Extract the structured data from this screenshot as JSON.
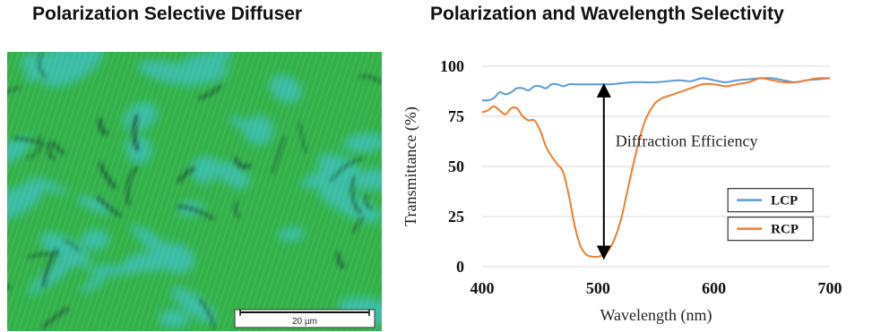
{
  "left_panel": {
    "title": "Polarization Selective Diffuser",
    "scale_bar_label": "20 µm",
    "colors": {
      "base": "#33b04a",
      "cyan": "#3cc0c8",
      "dark": "#1e5a3a",
      "stripe": "#5fd06a"
    }
  },
  "right_panel": {
    "title": "Polarization and Wavelength Selectivity"
  },
  "chart_data": {
    "type": "line",
    "xlabel": "Wavelength (nm)",
    "ylabel": "Transmittance (%)",
    "xlim": [
      400,
      700
    ],
    "ylim": [
      0,
      100
    ],
    "xticks": [
      400,
      500,
      600,
      700
    ],
    "yticks": [
      0,
      25,
      50,
      75,
      100
    ],
    "grid": "horizontal",
    "legend_placement": "bottom-right",
    "annotation": "Diffraction Efficiency",
    "series": [
      {
        "name": "LCP",
        "color": "#5b9bd5",
        "x": [
          400,
          405,
          410,
          415,
          420,
          425,
          430,
          435,
          440,
          445,
          450,
          455,
          460,
          465,
          470,
          475,
          480,
          490,
          500,
          510,
          520,
          530,
          540,
          550,
          560,
          570,
          580,
          590,
          600,
          610,
          620,
          630,
          640,
          650,
          660,
          670,
          680,
          690,
          700
        ],
        "y": [
          83,
          83,
          84,
          87,
          86,
          87,
          89,
          89,
          88,
          90,
          90,
          89,
          91,
          91,
          90,
          91,
          91,
          91,
          91,
          91,
          91.5,
          92,
          92,
          92,
          92.5,
          93,
          92.5,
          94,
          93,
          92,
          93,
          93.5,
          94,
          94,
          93,
          92,
          93,
          93.5,
          94
        ]
      },
      {
        "name": "RCP",
        "color": "#ed7d31",
        "x": [
          400,
          405,
          410,
          415,
          420,
          425,
          430,
          435,
          440,
          445,
          450,
          455,
          460,
          465,
          470,
          475,
          480,
          485,
          490,
          495,
          500,
          505,
          510,
          515,
          520,
          525,
          530,
          535,
          540,
          545,
          550,
          555,
          560,
          570,
          580,
          590,
          600,
          610,
          620,
          630,
          640,
          650,
          660,
          670,
          680,
          690,
          700
        ],
        "y": [
          77,
          78,
          80,
          78,
          76,
          79,
          79,
          75,
          73,
          73,
          68,
          60,
          55,
          51,
          47,
          35,
          20,
          10,
          6,
          5,
          5,
          6,
          9,
          15,
          24,
          37,
          50,
          62,
          72,
          78,
          82,
          84,
          85,
          87,
          89,
          91,
          91,
          90,
          91,
          92,
          94,
          93,
          92,
          92,
          93,
          94,
          94
        ]
      }
    ]
  }
}
